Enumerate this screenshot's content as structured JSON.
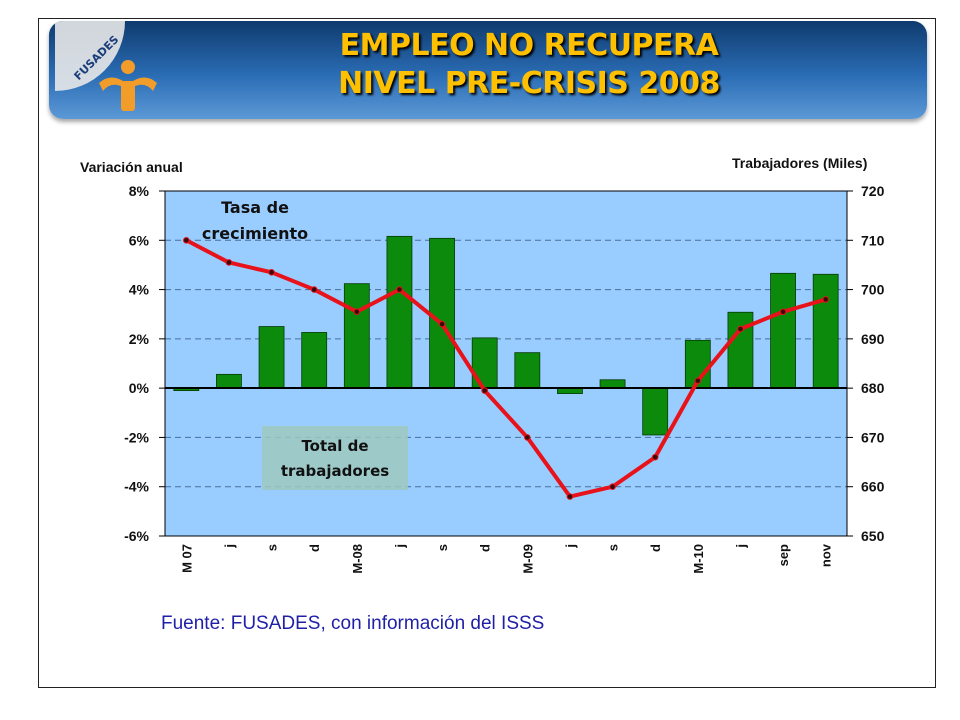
{
  "header": {
    "brand": "FUSADES",
    "title_line1": "EMPLEO NO RECUPERA",
    "title_line2": "NIVEL PRE-CRISIS 2008"
  },
  "colors": {
    "bar": "#0b8a0b",
    "line": "#e8121a",
    "plot_bg": "#99ccff",
    "title": "#ffc000",
    "source": "#1f1fa8"
  },
  "chart_data": {
    "type": "bar",
    "left_axis_title": "Variación anual",
    "right_axis_title": "Trabajadores (Miles)",
    "categories": [
      "M 07",
      "j",
      "s",
      "d",
      "M-08",
      "j",
      "s",
      "d",
      "M-09",
      "j",
      "s",
      "d",
      "M-10",
      "j",
      "sep",
      "nov"
    ],
    "y_left": {
      "min": -6,
      "max": 8,
      "step": 2,
      "tick_labels": [
        "8%",
        "6%",
        "4%",
        "2%",
        "0%",
        "-2%",
        "-4%",
        "-6%"
      ]
    },
    "y_right": {
      "min": 650,
      "max": 720,
      "step": 10,
      "tick_labels": [
        "720",
        "710",
        "700",
        "690",
        "680",
        "670",
        "660",
        "650"
      ]
    },
    "series": [
      {
        "name": "Total de trabajadores",
        "kind": "bar",
        "axis": "right",
        "values": [
          679.5,
          682.8,
          692.5,
          691.3,
          701.2,
          710.8,
          710.4,
          690.2,
          687.2,
          678.9,
          681.7,
          670.5,
          689.7,
          695.4,
          703.3,
          703.1
        ]
      },
      {
        "name": "Tasa de crecimiento",
        "kind": "line",
        "axis": "left",
        "values": [
          6.0,
          5.1,
          4.7,
          4.0,
          3.1,
          4.0,
          2.6,
          -0.1,
          -2.0,
          -4.4,
          -4.0,
          -2.8,
          0.3,
          2.4,
          3.1,
          3.6
        ]
      }
    ],
    "grid": true,
    "gridline_style": "dashed"
  },
  "labels": {
    "rate_line1": "Tasa de",
    "rate_line2": "crecimiento",
    "workers_line1": "Total de",
    "workers_line2": "trabajadores"
  },
  "source": "Fuente: FUSADES, con información del ISSS"
}
